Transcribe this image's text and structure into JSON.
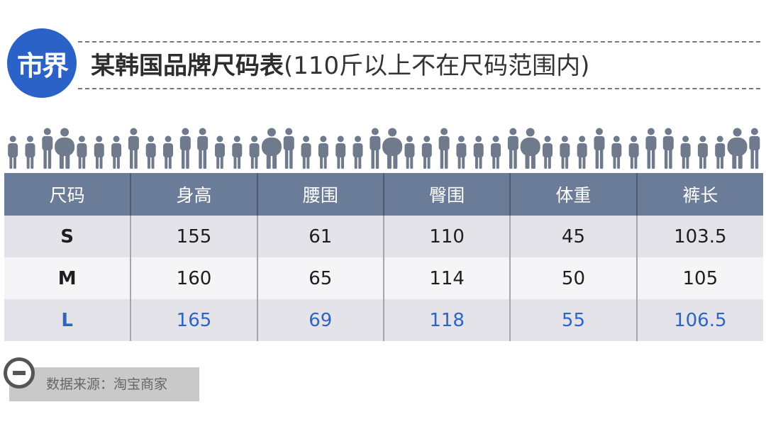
{
  "header": {
    "logo_text": "市界",
    "title_main": "某韩国品牌尺码表",
    "title_sub": "(110斤以上不在尺码范围内)"
  },
  "colors": {
    "brand_blue": "#2b62c8",
    "header_bg": "#6b7c99",
    "highlight_text": "#2e64c2",
    "figure_gray": "#6f7a8c"
  },
  "table": {
    "columns": [
      "尺码",
      "身高",
      "腰围",
      "臀围",
      "体重",
      "裤长"
    ],
    "rows": [
      [
        "S",
        "155",
        "61",
        "110",
        "45",
        "103.5"
      ],
      [
        "M",
        "160",
        "65",
        "114",
        "50",
        "105"
      ],
      [
        "L",
        "165",
        "69",
        "118",
        "55",
        "106.5"
      ]
    ]
  },
  "footer": {
    "source_icon": "minus-circle-icon",
    "source_text": "数据来源：淘宝商家"
  },
  "decoration": {
    "people_icon": "person-silhouette-icon"
  }
}
